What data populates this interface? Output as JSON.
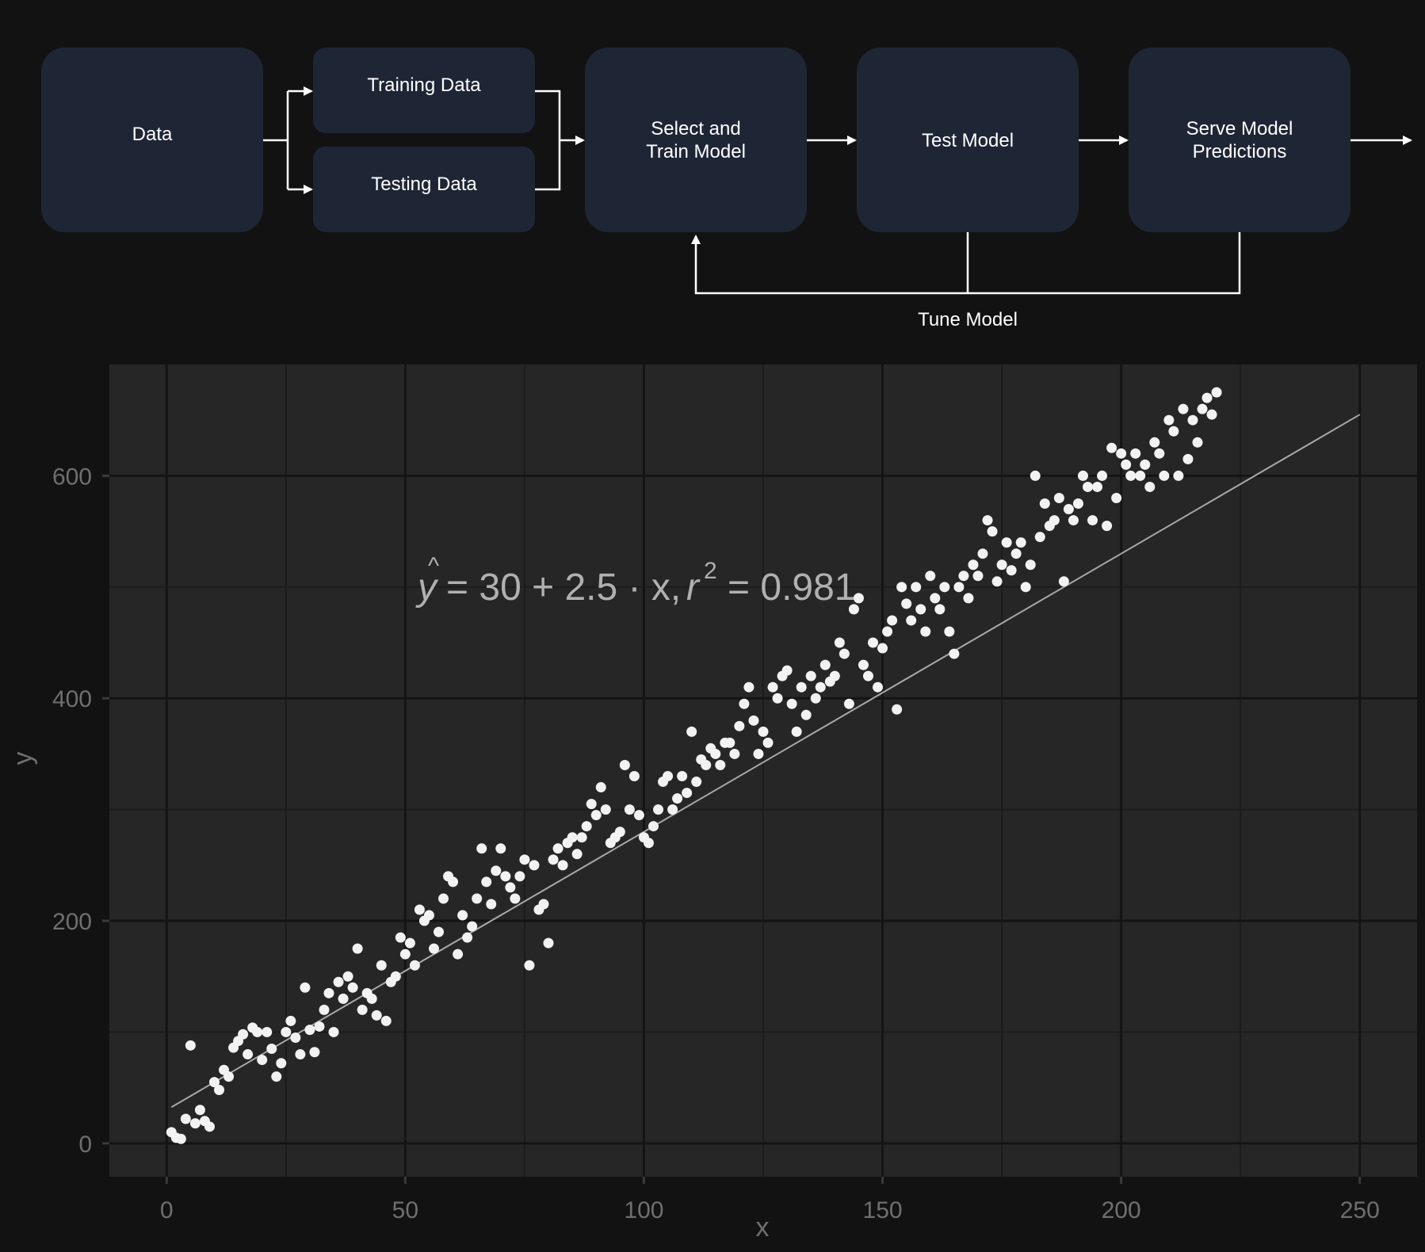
{
  "pipeline": {
    "nodes": {
      "data": "Data",
      "training": "Training Data",
      "testing": "Testing Data",
      "select_train": [
        "Select and",
        "Train Model"
      ],
      "test": "Test Model",
      "serve": [
        "Serve Model",
        "Predictions"
      ]
    },
    "feedback_label": "Tune Model"
  },
  "colors": {
    "page_bg": "#121212",
    "node_fill": "#1e2636",
    "line": "#ffffff",
    "panel_bg": "#262626",
    "grid_major": "#141414",
    "grid_minor": "#1c1c1c",
    "point": "#f2f2f2",
    "fit_line": "#a8a8a8",
    "axis_text": "#6f6f6f"
  },
  "chart_data": {
    "type": "scatter",
    "xlabel": "x",
    "ylabel": "y",
    "xlim": [
      -12,
      262
    ],
    "ylim": [
      -30,
      700
    ],
    "x_ticks": [
      0,
      50,
      100,
      150,
      200,
      250
    ],
    "y_ticks": [
      0,
      200,
      400,
      600
    ],
    "grid": true,
    "annotation": {
      "yhat": "y",
      "lhs": "= 30 + 2.5 · x,",
      "r": "r",
      "r_exp": "2",
      "rhs": "= 0.981"
    },
    "fit": {
      "intercept": 30,
      "slope": 2.5,
      "r2": 0.981,
      "x_range": [
        1,
        250
      ]
    },
    "points": [
      [
        1,
        10
      ],
      [
        2,
        5
      ],
      [
        3,
        4
      ],
      [
        4,
        22
      ],
      [
        5,
        88
      ],
      [
        6,
        18
      ],
      [
        7,
        30
      ],
      [
        8,
        20
      ],
      [
        9,
        15
      ],
      [
        10,
        55
      ],
      [
        11,
        48
      ],
      [
        12,
        66
      ],
      [
        13,
        60
      ],
      [
        14,
        86
      ],
      [
        15,
        92
      ],
      [
        16,
        98
      ],
      [
        17,
        80
      ],
      [
        18,
        104
      ],
      [
        19,
        100
      ],
      [
        20,
        75
      ],
      [
        21,
        100
      ],
      [
        22,
        85
      ],
      [
        23,
        60
      ],
      [
        24,
        72
      ],
      [
        25,
        100
      ],
      [
        26,
        110
      ],
      [
        27,
        95
      ],
      [
        28,
        80
      ],
      [
        29,
        140
      ],
      [
        30,
        102
      ],
      [
        31,
        82
      ],
      [
        32,
        105
      ],
      [
        33,
        120
      ],
      [
        34,
        135
      ],
      [
        35,
        100
      ],
      [
        36,
        145
      ],
      [
        37,
        130
      ],
      [
        38,
        150
      ],
      [
        39,
        140
      ],
      [
        40,
        175
      ],
      [
        41,
        120
      ],
      [
        42,
        135
      ],
      [
        43,
        130
      ],
      [
        44,
        115
      ],
      [
        45,
        160
      ],
      [
        46,
        110
      ],
      [
        47,
        145
      ],
      [
        48,
        150
      ],
      [
        49,
        185
      ],
      [
        50,
        170
      ],
      [
        51,
        180
      ],
      [
        52,
        160
      ],
      [
        53,
        210
      ],
      [
        54,
        200
      ],
      [
        55,
        205
      ],
      [
        56,
        175
      ],
      [
        57,
        190
      ],
      [
        58,
        220
      ],
      [
        59,
        240
      ],
      [
        60,
        235
      ],
      [
        61,
        170
      ],
      [
        62,
        205
      ],
      [
        63,
        185
      ],
      [
        64,
        195
      ],
      [
        65,
        220
      ],
      [
        66,
        265
      ],
      [
        67,
        235
      ],
      [
        68,
        215
      ],
      [
        69,
        245
      ],
      [
        70,
        265
      ],
      [
        71,
        240
      ],
      [
        72,
        230
      ],
      [
        73,
        220
      ],
      [
        74,
        240
      ],
      [
        75,
        255
      ],
      [
        76,
        160
      ],
      [
        77,
        250
      ],
      [
        78,
        210
      ],
      [
        79,
        215
      ],
      [
        80,
        180
      ],
      [
        81,
        255
      ],
      [
        82,
        265
      ],
      [
        83,
        250
      ],
      [
        84,
        270
      ],
      [
        85,
        275
      ],
      [
        86,
        260
      ],
      [
        87,
        275
      ],
      [
        88,
        285
      ],
      [
        89,
        305
      ],
      [
        90,
        295
      ],
      [
        91,
        320
      ],
      [
        92,
        300
      ],
      [
        93,
        270
      ],
      [
        94,
        275
      ],
      [
        95,
        280
      ],
      [
        96,
        340
      ],
      [
        97,
        300
      ],
      [
        98,
        330
      ],
      [
        99,
        295
      ],
      [
        100,
        275
      ],
      [
        101,
        270
      ],
      [
        102,
        285
      ],
      [
        103,
        300
      ],
      [
        104,
        325
      ],
      [
        105,
        330
      ],
      [
        106,
        300
      ],
      [
        107,
        310
      ],
      [
        108,
        330
      ],
      [
        109,
        315
      ],
      [
        110,
        370
      ],
      [
        111,
        325
      ],
      [
        112,
        345
      ],
      [
        113,
        340
      ],
      [
        114,
        355
      ],
      [
        115,
        350
      ],
      [
        116,
        340
      ],
      [
        117,
        360
      ],
      [
        118,
        360
      ],
      [
        119,
        350
      ],
      [
        120,
        375
      ],
      [
        121,
        395
      ],
      [
        122,
        410
      ],
      [
        123,
        380
      ],
      [
        124,
        350
      ],
      [
        125,
        370
      ],
      [
        126,
        360
      ],
      [
        127,
        410
      ],
      [
        128,
        400
      ],
      [
        129,
        420
      ],
      [
        130,
        425
      ],
      [
        131,
        395
      ],
      [
        132,
        370
      ],
      [
        133,
        410
      ],
      [
        134,
        385
      ],
      [
        135,
        420
      ],
      [
        136,
        400
      ],
      [
        137,
        410
      ],
      [
        138,
        430
      ],
      [
        139,
        415
      ],
      [
        140,
        420
      ],
      [
        141,
        450
      ],
      [
        142,
        440
      ],
      [
        143,
        395
      ],
      [
        144,
        480
      ],
      [
        145,
        490
      ],
      [
        146,
        430
      ],
      [
        147,
        420
      ],
      [
        148,
        450
      ],
      [
        149,
        410
      ],
      [
        150,
        445
      ],
      [
        151,
        460
      ],
      [
        152,
        470
      ],
      [
        153,
        390
      ],
      [
        154,
        500
      ],
      [
        155,
        485
      ],
      [
        156,
        470
      ],
      [
        157,
        500
      ],
      [
        158,
        480
      ],
      [
        159,
        460
      ],
      [
        160,
        510
      ],
      [
        161,
        490
      ],
      [
        162,
        480
      ],
      [
        163,
        500
      ],
      [
        164,
        460
      ],
      [
        165,
        440
      ],
      [
        166,
        500
      ],
      [
        167,
        510
      ],
      [
        168,
        490
      ],
      [
        169,
        520
      ],
      [
        170,
        510
      ],
      [
        171,
        530
      ],
      [
        172,
        560
      ],
      [
        173,
        550
      ],
      [
        174,
        505
      ],
      [
        175,
        520
      ],
      [
        176,
        540
      ],
      [
        177,
        515
      ],
      [
        178,
        530
      ],
      [
        179,
        540
      ],
      [
        180,
        500
      ],
      [
        181,
        520
      ],
      [
        182,
        600
      ],
      [
        183,
        545
      ],
      [
        184,
        575
      ],
      [
        185,
        555
      ],
      [
        186,
        560
      ],
      [
        187,
        580
      ],
      [
        188,
        505
      ],
      [
        189,
        570
      ],
      [
        190,
        560
      ],
      [
        191,
        575
      ],
      [
        192,
        600
      ],
      [
        193,
        590
      ],
      [
        194,
        560
      ],
      [
        195,
        590
      ],
      [
        196,
        600
      ],
      [
        197,
        555
      ],
      [
        198,
        625
      ],
      [
        199,
        580
      ],
      [
        200,
        620
      ],
      [
        201,
        610
      ],
      [
        202,
        600
      ],
      [
        203,
        620
      ],
      [
        204,
        600
      ],
      [
        205,
        610
      ],
      [
        206,
        590
      ],
      [
        207,
        630
      ],
      [
        208,
        620
      ],
      [
        209,
        600
      ],
      [
        210,
        650
      ],
      [
        211,
        640
      ],
      [
        212,
        600
      ],
      [
        213,
        660
      ],
      [
        214,
        615
      ],
      [
        215,
        650
      ],
      [
        216,
        630
      ],
      [
        217,
        660
      ],
      [
        218,
        670
      ],
      [
        219,
        655
      ],
      [
        220,
        675
      ]
    ]
  }
}
